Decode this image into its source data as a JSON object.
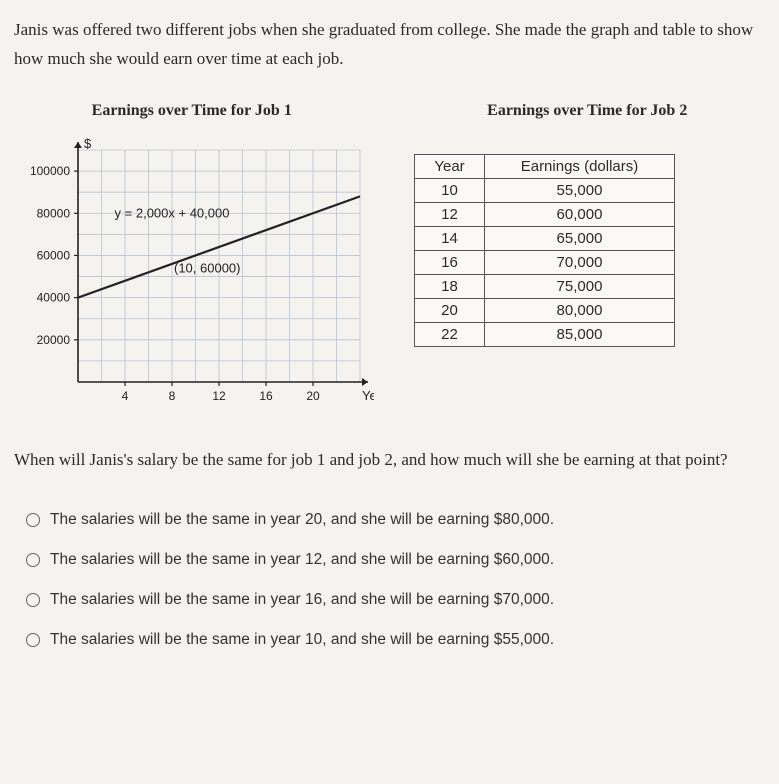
{
  "intro": "Janis was offered two different jobs when she graduated from college. She made the graph and table to show how much she would earn over time at each job.",
  "chart": {
    "title": "Earnings over Time for Job 1",
    "y_axis_symbol": "$",
    "x_axis_label": "Year",
    "equation": "y = 2,000x + 40,000",
    "point_label": "(10, 60000)",
    "y_ticks": [
      20000,
      40000,
      60000,
      80000,
      100000
    ],
    "x_ticks": [
      4,
      8,
      12,
      16,
      20
    ],
    "xlim": [
      0,
      24
    ],
    "ylim": [
      0,
      110000
    ],
    "line": {
      "slope": 2000,
      "intercept": 40000,
      "x_from": 0,
      "x_to": 24
    },
    "grid_color": "#b8c4d0",
    "axis_color": "#222222",
    "line_color": "#222222",
    "tick_fontsize": 12,
    "label_fontsize": 13
  },
  "table": {
    "title": "Earnings over Time for Job 2",
    "headers": [
      "Year",
      "Earnings (dollars)"
    ],
    "rows": [
      [
        "10",
        "55,000"
      ],
      [
        "12",
        "60,000"
      ],
      [
        "14",
        "65,000"
      ],
      [
        "16",
        "70,000"
      ],
      [
        "18",
        "75,000"
      ],
      [
        "20",
        "80,000"
      ],
      [
        "22",
        "85,000"
      ]
    ]
  },
  "question": "When will Janis's salary be the same for job 1 and job 2, and how much will she be earning at that point?",
  "options": [
    "The salaries will be the same in year 20, and she will be earning $80,000.",
    "The salaries will be the same in year 12, and she will be earning $60,000.",
    "The salaries will be the same in year 16, and she will be earning $70,000.",
    "The salaries will be the same in year 10, and she will be earning $55,000."
  ]
}
